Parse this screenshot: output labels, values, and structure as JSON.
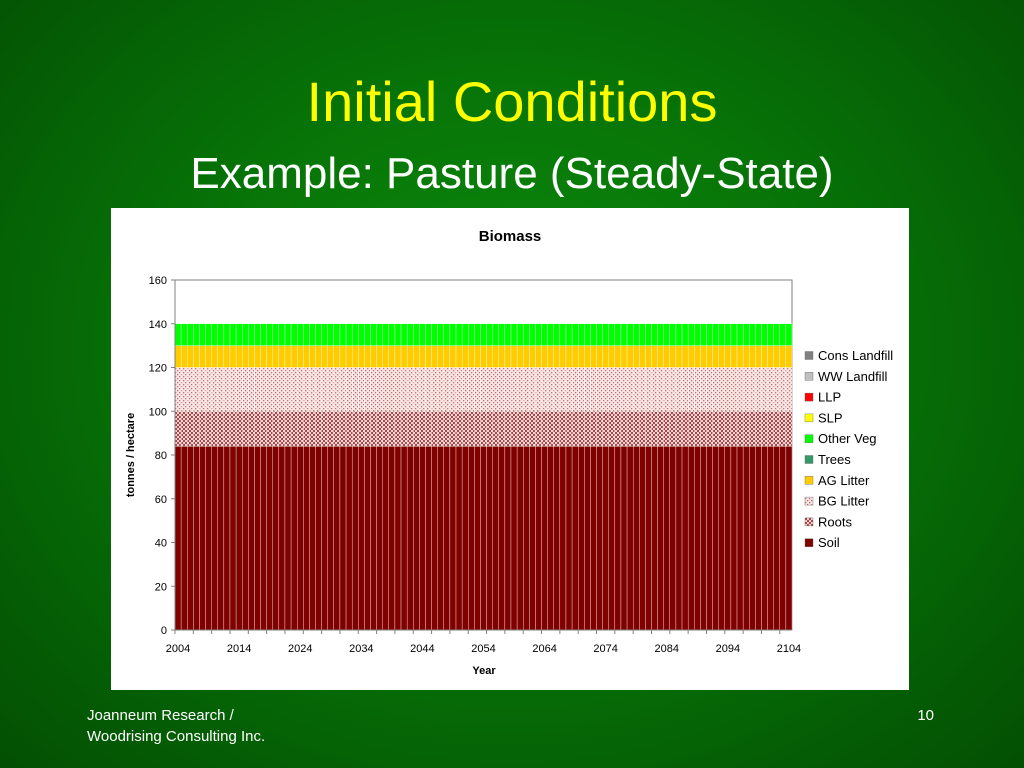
{
  "slide": {
    "title": "Initial Conditions",
    "subtitle": "Example: Pasture (Steady-State)",
    "footer": "Joanneum Research /\nWoodrising Consulting Inc.",
    "page_number": "10"
  },
  "chart_data": {
    "type": "bar",
    "stacked": true,
    "title": "Biomass",
    "xlabel": "Year",
    "ylabel": "tonnes / hectare",
    "ylim": [
      0,
      160
    ],
    "yticks": [
      0,
      20,
      40,
      60,
      80,
      100,
      120,
      140,
      160
    ],
    "x_start": 2004,
    "x_end": 2104,
    "x_tick_labels": [
      "2004",
      "2014",
      "2024",
      "2034",
      "2044",
      "2054",
      "2064",
      "2074",
      "2084",
      "2094",
      "2104"
    ],
    "legend_position": "right",
    "series": [
      {
        "name": "Cons Landfill",
        "value_each_year": 0,
        "color": "#808080",
        "pattern": "solid"
      },
      {
        "name": "WW Landfill",
        "value_each_year": 0,
        "color": "#c0c0c0",
        "pattern": "solid"
      },
      {
        "name": "LLP",
        "value_each_year": 0,
        "color": "#ff0000",
        "pattern": "solid"
      },
      {
        "name": "SLP",
        "value_each_year": 0,
        "color": "#ffff00",
        "pattern": "solid"
      },
      {
        "name": "Other Veg",
        "value_each_year": 10,
        "color": "#00ff00",
        "pattern": "solid"
      },
      {
        "name": "Trees",
        "value_each_year": 0,
        "color": "#339966",
        "pattern": "solid"
      },
      {
        "name": "AG Litter",
        "value_each_year": 10,
        "color": "#ffcc00",
        "pattern": "solid"
      },
      {
        "name": "BG Litter",
        "value_each_year": 20,
        "color": "#f0b8b8",
        "pattern": "dots"
      },
      {
        "name": "Roots",
        "value_each_year": 16,
        "color": "#c08080",
        "pattern": "checks"
      },
      {
        "name": "Soil",
        "value_each_year": 84,
        "color": "#800000",
        "pattern": "solid"
      }
    ]
  }
}
